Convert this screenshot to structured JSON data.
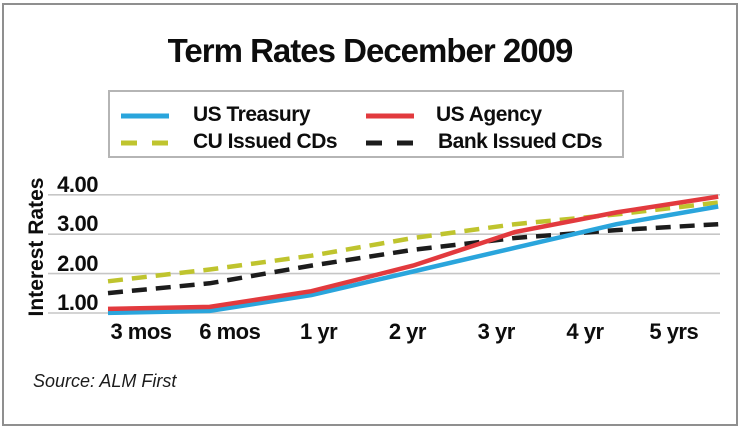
{
  "source": "Source: ALM First",
  "colors": {
    "us_treasury": "#2aa5dc",
    "us_agency": "#e23a3e",
    "cu_cds": "#bfc42e",
    "bank_cds": "#1c1c1c",
    "gridline": "#c6c6c6"
  },
  "chart_data": {
    "type": "line",
    "title": "Term Rates December 2009",
    "ylabel": "Interest Rates",
    "xlabel": "",
    "categories": [
      "3 mos",
      "6 mos",
      "1 yr",
      "2 yr",
      "3 yr",
      "4 yr",
      "5 yrs"
    ],
    "series": [
      {
        "name": "US Treasury",
        "color": "#2aa5dc",
        "dash": "solid",
        "values": [
          0.75,
          0.8,
          1.2,
          1.8,
          2.4,
          3.0,
          3.45
        ]
      },
      {
        "name": "US Agency",
        "color": "#e23a3e",
        "dash": "solid",
        "values": [
          0.85,
          0.9,
          1.3,
          1.95,
          2.8,
          3.3,
          3.7
        ]
      },
      {
        "name": "CU Issued CDs",
        "color": "#bfc42e",
        "dash": "dashed",
        "values": [
          1.55,
          1.85,
          2.2,
          2.65,
          3.0,
          3.25,
          3.55
        ]
      },
      {
        "name": "Bank Issued CDs",
        "color": "#1c1c1c",
        "dash": "dashed",
        "values": [
          1.25,
          1.5,
          1.95,
          2.35,
          2.65,
          2.85,
          3.0
        ]
      }
    ],
    "yticks": [
      "1.00",
      "2.00",
      "3.00",
      "4.00"
    ],
    "ytick_values": [
      1.0,
      2.0,
      3.0,
      4.0
    ],
    "ylim": [
      0.6,
      4.3
    ],
    "grid": true,
    "legend_position": "top"
  }
}
